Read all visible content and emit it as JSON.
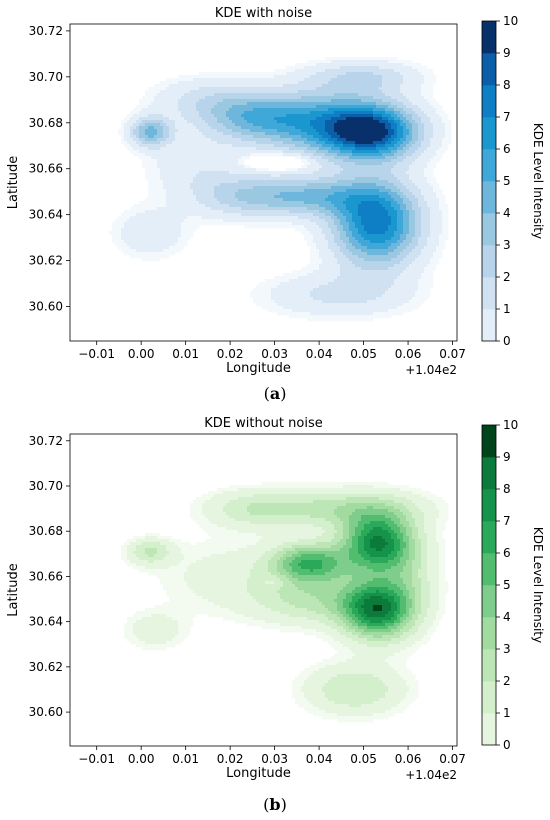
{
  "charts": [
    {
      "id": "a",
      "caption_label": "a",
      "chart_data": {
        "type": "heatmap",
        "subtype": "filled-contour (kde)",
        "title": "KDE with noise",
        "xlabel": "Longitude",
        "ylabel": "Latitude",
        "x_offset_label": "+1.04e2",
        "xlim": [
          -0.016,
          0.071
        ],
        "ylim": [
          30.585,
          30.723
        ],
        "xticks": [
          -0.01,
          0.0,
          0.01,
          0.02,
          0.03,
          0.04,
          0.05,
          0.06,
          0.07
        ],
        "xtick_labels": [
          "−0.01",
          "0.00",
          "0.01",
          "0.02",
          "0.03",
          "0.04",
          "0.05",
          "0.06",
          "0.07"
        ],
        "yticks": [
          30.6,
          30.62,
          30.64,
          30.66,
          30.68,
          30.7,
          30.72
        ],
        "ytick_labels": [
          "30.60",
          "30.62",
          "30.64",
          "30.66",
          "30.68",
          "30.70",
          "30.72"
        ],
        "colorbar": {
          "label": "KDE Level Intensity",
          "range": [
            0,
            10
          ],
          "ticks": [
            0,
            1,
            2,
            3,
            4,
            5,
            6,
            7,
            8,
            9,
            10
          ],
          "colormap": "Blues",
          "colors": [
            "#f3f8fd",
            "#e3eef9",
            "#d0e1f2",
            "#b8d4ea",
            "#9ac8e0",
            "#6fb6dc",
            "#3fa8d8",
            "#1b97d0",
            "#0e7fc4",
            "#0b5fa8",
            "#08306b"
          ]
        },
        "kernels": [
          {
            "x": 0.052,
            "y": 30.676,
            "w": 9.2,
            "sx": 0.0075,
            "sy": 0.0085
          },
          {
            "x": 0.053,
            "y": 30.636,
            "w": 8.6,
            "sx": 0.007,
            "sy": 0.013
          },
          {
            "x": 0.04,
            "y": 30.68,
            "w": 5.6,
            "sx": 0.01,
            "sy": 0.01
          },
          {
            "x": 0.025,
            "y": 30.682,
            "w": 4.0,
            "sx": 0.008,
            "sy": 0.007
          },
          {
            "x": 0.038,
            "y": 30.648,
            "w": 4.6,
            "sx": 0.01,
            "sy": 0.006
          },
          {
            "x": 0.022,
            "y": 30.648,
            "w": 2.6,
            "sx": 0.008,
            "sy": 0.007
          },
          {
            "x": 0.002,
            "y": 30.676,
            "w": 5.2,
            "sx": 0.0032,
            "sy": 0.0045
          },
          {
            "x": 0.044,
            "y": 30.605,
            "w": 2.2,
            "sx": 0.012,
            "sy": 0.007
          },
          {
            "x": 0.015,
            "y": 30.69,
            "w": 2.2,
            "sx": 0.009,
            "sy": 0.007
          },
          {
            "x": 0.05,
            "y": 30.7,
            "w": 2.8,
            "sx": 0.009,
            "sy": 0.005
          },
          {
            "x": 0.002,
            "y": 30.632,
            "w": 1.8,
            "sx": 0.006,
            "sy": 0.008
          },
          {
            "x": 0.012,
            "y": 30.662,
            "w": 1.6,
            "sx": 0.008,
            "sy": 0.01
          },
          {
            "x": 0.031,
            "y": 30.663,
            "w": -2.5,
            "sx": 0.005,
            "sy": 0.0025
          }
        ]
      }
    },
    {
      "id": "b",
      "caption_label": "b",
      "chart_data": {
        "type": "heatmap",
        "subtype": "filled-contour (kde)",
        "title": "KDE without noise",
        "xlabel": "Longitude",
        "ylabel": "Latitude",
        "x_offset_label": "+1.04e2",
        "xlim": [
          -0.016,
          0.071
        ],
        "ylim": [
          30.585,
          30.723
        ],
        "xticks": [
          -0.01,
          0.0,
          0.01,
          0.02,
          0.03,
          0.04,
          0.05,
          0.06,
          0.07
        ],
        "xtick_labels": [
          "−0.01",
          "0.00",
          "0.01",
          "0.02",
          "0.03",
          "0.04",
          "0.05",
          "0.06",
          "0.07"
        ],
        "yticks": [
          30.6,
          30.62,
          30.64,
          30.66,
          30.68,
          30.7,
          30.72
        ],
        "ytick_labels": [
          "30.60",
          "30.62",
          "30.64",
          "30.66",
          "30.68",
          "30.70",
          "30.72"
        ],
        "colorbar": {
          "label": "KDE Level Intensity",
          "range": [
            0,
            10
          ],
          "ticks": [
            0,
            1,
            2,
            3,
            4,
            5,
            6,
            7,
            8,
            9,
            10
          ],
          "colormap": "Greens",
          "colors": [
            "#f3fbf1",
            "#e5f5e0",
            "#d3efcb",
            "#bde6b6",
            "#a2dba0",
            "#7fcd8c",
            "#52bd6f",
            "#2aa95a",
            "#15934a",
            "#0b7a3b",
            "#00441b"
          ]
        },
        "kernels": [
          {
            "x": 0.053,
            "y": 30.675,
            "w": 8.6,
            "sx": 0.0055,
            "sy": 0.009
          },
          {
            "x": 0.053,
            "y": 30.645,
            "w": 8.4,
            "sx": 0.0055,
            "sy": 0.009
          },
          {
            "x": 0.038,
            "y": 30.666,
            "w": 6.5,
            "sx": 0.006,
            "sy": 0.006
          },
          {
            "x": 0.04,
            "y": 30.65,
            "w": 3.2,
            "sx": 0.01,
            "sy": 0.008
          },
          {
            "x": 0.046,
            "y": 30.69,
            "w": 3.4,
            "sx": 0.012,
            "sy": 0.006
          },
          {
            "x": 0.025,
            "y": 30.69,
            "w": 2.4,
            "sx": 0.008,
            "sy": 0.006
          },
          {
            "x": 0.002,
            "y": 30.671,
            "w": 3.0,
            "sx": 0.0035,
            "sy": 0.004
          },
          {
            "x": 0.02,
            "y": 30.66,
            "w": 1.4,
            "sx": 0.012,
            "sy": 0.012
          },
          {
            "x": 0.048,
            "y": 30.61,
            "w": 3.0,
            "sx": 0.008,
            "sy": 0.008
          },
          {
            "x": 0.003,
            "y": 30.636,
            "w": 1.6,
            "sx": 0.005,
            "sy": 0.006
          },
          {
            "x": 0.06,
            "y": 30.66,
            "w": 2.2,
            "sx": 0.005,
            "sy": 0.015
          },
          {
            "x": 0.03,
            "y": 30.658,
            "w": -1.2,
            "sx": 0.002,
            "sy": 0.002
          }
        ]
      }
    }
  ]
}
